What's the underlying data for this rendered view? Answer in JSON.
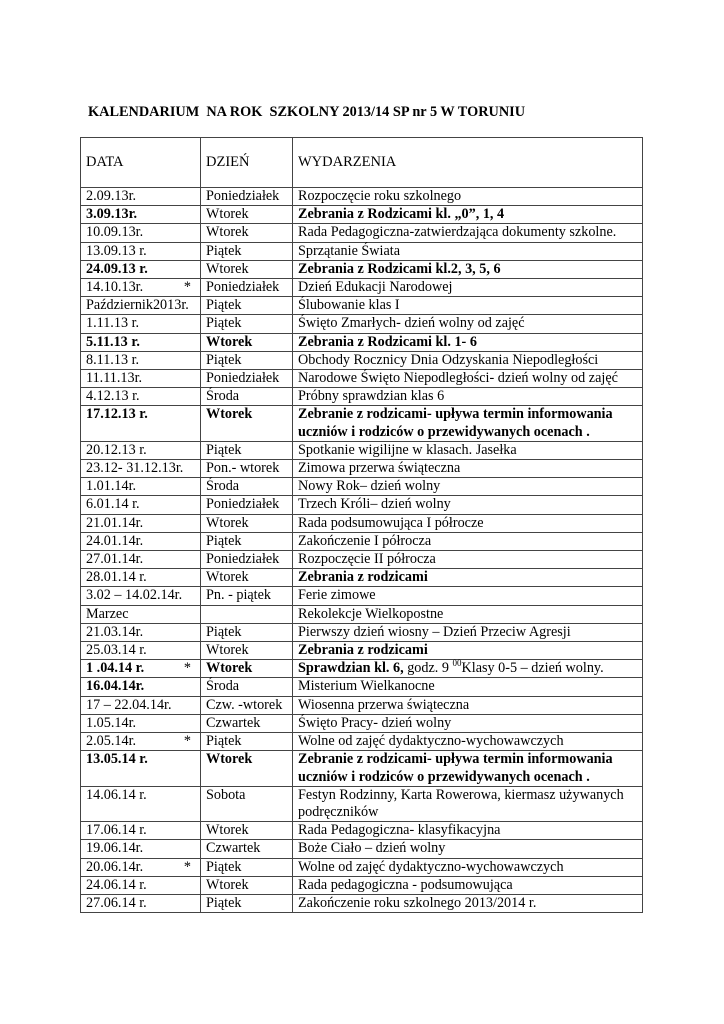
{
  "title": "KALENDARIUM  NA ROK  SZKOLNY 2013/14 SP nr 5 W TORUNIU",
  "headers": {
    "date": "DATA",
    "day": "DZIEŃ",
    "events": "WYDARZENIA"
  },
  "rows": [
    {
      "date": "2.09.13r.",
      "day": "Poniedziałek",
      "parts": [
        {
          "text": "Rozpoczęcie roku szkolnego"
        }
      ]
    },
    {
      "date": "3.09.13r.",
      "date_bold": true,
      "day": "Wtorek",
      "parts": [
        {
          "text": "Zebrania z Rodzicami kl. „0”, 1, 4",
          "bold": true
        }
      ]
    },
    {
      "date": "10.09.13r.",
      "day": "Wtorek",
      "parts": [
        {
          "text": "Rada Pedagogiczna-zatwierdzająca dokumenty szkolne."
        }
      ]
    },
    {
      "date": "13.09.13 r.",
      "day": "Piątek",
      "parts": [
        {
          "text": "Sprzątanie Świata"
        }
      ]
    },
    {
      "date": "24.09.13 r.",
      "date_bold": true,
      "day": "Wtorek",
      "parts": [
        {
          "text": "Zebrania z Rodzicami kl.2, 3, 5, 6",
          "bold": true
        }
      ]
    },
    {
      "date": "14.10.13r.",
      "star": "*",
      "day": "Poniedziałek",
      "parts": [
        {
          "text": "Dzień Edukacji Narodowej"
        }
      ]
    },
    {
      "date": "Październik2013r.",
      "day": "Piątek",
      "parts": [
        {
          "text": "Ślubowanie klas I"
        }
      ]
    },
    {
      "date": "1.11.13 r.",
      "day": "Piątek",
      "parts": [
        {
          "text": "Święto Zmarłych- dzień wolny od zajęć"
        }
      ]
    },
    {
      "date": "5.11.13 r.",
      "date_bold": true,
      "day": "Wtorek",
      "day_bold": true,
      "parts": [
        {
          "text": "Zebrania z Rodzicami kl. 1- 6",
          "bold": true
        }
      ]
    },
    {
      "date": "8.11.13 r.",
      "day": "Piątek",
      "parts": [
        {
          "text": "Obchody Rocznicy Dnia Odzyskania Niepodległości"
        }
      ]
    },
    {
      "date": "11.11.13r.",
      "day": "Poniedziałek",
      "parts": [
        {
          "text": "Narodowe Święto Niepodległości- dzień wolny od zajęć"
        }
      ]
    },
    {
      "date": "4.12.13 r.",
      "day": "Środa",
      "parts": [
        {
          "text": "Próbny sprawdzian klas 6"
        }
      ]
    },
    {
      "date": "17.12.13 r.",
      "date_bold": true,
      "day": "Wtorek",
      "day_bold": true,
      "parts": [
        {
          "text": "Zebranie z rodzicami- upływa termin informowania uczniów i rodziców o przewidywanych ocenach .",
          "bold": true
        }
      ]
    },
    {
      "date": "20.12.13 r.",
      "day": "Piątek",
      "parts": [
        {
          "text": "Spotkanie wigilijne w klasach. Jasełka"
        }
      ]
    },
    {
      "date": "23.12- 31.12.13r.",
      "day": "Pon.- wtorek",
      "parts": [
        {
          "text": "Zimowa przerwa świąteczna"
        }
      ]
    },
    {
      "date": "1.01.14r.",
      "day": "Środa",
      "parts": [
        {
          "text": "Nowy Rok– dzień wolny"
        }
      ]
    },
    {
      "date": "6.01.14 r.",
      "day": "Poniedziałek",
      "parts": [
        {
          "text": "Trzech Króli– dzień wolny"
        }
      ]
    },
    {
      "date": "21.01.14r.",
      "day": "Wtorek",
      "parts": [
        {
          "text": "Rada podsumowująca  I półrocze"
        }
      ]
    },
    {
      "date": "24.01.14r.",
      "day": "Piątek",
      "parts": [
        {
          "text": "Zakończenie I półrocza"
        }
      ]
    },
    {
      "date": "27.01.14r.",
      "day": "Poniedziałek",
      "parts": [
        {
          "text": "Rozpoczęcie II półrocza"
        }
      ]
    },
    {
      "date": "28.01.14 r.",
      "day": "Wtorek",
      "parts": [
        {
          "text": "Zebrania z rodzicami",
          "bold": true
        }
      ]
    },
    {
      "date": "3.02 – 14.02.14r.",
      "day": "Pn. - piątek",
      "parts": [
        {
          "text": "Ferie zimowe"
        }
      ]
    },
    {
      "date": "Marzec",
      "day": "",
      "parts": [
        {
          "text": "Rekolekcje Wielkopostne"
        }
      ]
    },
    {
      "date": "21.03.14r.",
      "day": "Piątek",
      "parts": [
        {
          "text": "Pierwszy dzień wiosny – Dzień Przeciw Agresji"
        }
      ]
    },
    {
      "date": "25.03.14 r.",
      "day": "Wtorek",
      "parts": [
        {
          "text": "Zebrania z rodzicami",
          "bold": true
        }
      ]
    },
    {
      "date": "1 .04.14 r.",
      "date_bold": true,
      "star": "*",
      "day": "Wtorek",
      "day_bold": true,
      "parts": [
        {
          "text": "Sprawdzian kl. 6,",
          "bold": true
        },
        {
          "text": " godz. 9 "
        },
        {
          "text": "00",
          "sup": true
        },
        {
          "text": "Klasy 0-5 – dzień wolny."
        }
      ]
    },
    {
      "date": "16.04.14r.",
      "date_bold": true,
      "day": "Środa",
      "parts": [
        {
          "text": "Misterium Wielkanocne"
        }
      ]
    },
    {
      "date": "17 – 22.04.14r.",
      "day": "Czw. -wtorek",
      "parts": [
        {
          "text": "Wiosenna przerwa świąteczna"
        }
      ]
    },
    {
      "date": "1.05.14r.",
      "day": "Czwartek",
      "parts": [
        {
          "text": "Święto Pracy- dzień wolny"
        }
      ]
    },
    {
      "date": "2.05.14r.",
      "star": "*",
      "day": "Piątek",
      "parts": [
        {
          "text": "Wolne od zajęć dydaktyczno-wychowawczych"
        }
      ]
    },
    {
      "date": "13.05.14 r.",
      "date_bold": true,
      "day": "Wtorek",
      "day_bold": true,
      "parts": [
        {
          "text": "Zebranie z rodzicami- upływa termin informowania uczniów i rodziców o przewidywanych ocenach .",
          "bold": true
        }
      ]
    },
    {
      "date": "14.06.14 r.",
      "day": "Sobota",
      "parts": [
        {
          "text": "Festyn Rodzinny, Karta Rowerowa, kiermasz używanych podręczników"
        }
      ]
    },
    {
      "date": "17.06.14 r.",
      "day": "Wtorek",
      "parts": [
        {
          "text": "Rada  Pedagogiczna- klasyfikacyjna"
        }
      ]
    },
    {
      "date": "19.06.14r.",
      "day": "Czwartek",
      "parts": [
        {
          "text": "Boże Ciało – dzień wolny"
        }
      ]
    },
    {
      "date": "20.06.14r.",
      "star": "*",
      "day": "Piątek",
      "parts": [
        {
          "text": "Wolne od zajęć dydaktyczno-wychowawczych"
        }
      ]
    },
    {
      "date": "24.06.14 r.",
      "day": "Wtorek",
      "parts": [
        {
          "text": "Rada pedagogiczna - podsumowująca"
        }
      ]
    },
    {
      "date": "27.06.14 r.",
      "day": "Piątek",
      "parts": [
        {
          "text": "Zakończenie roku szkolnego 2013/2014 r."
        }
      ]
    }
  ]
}
